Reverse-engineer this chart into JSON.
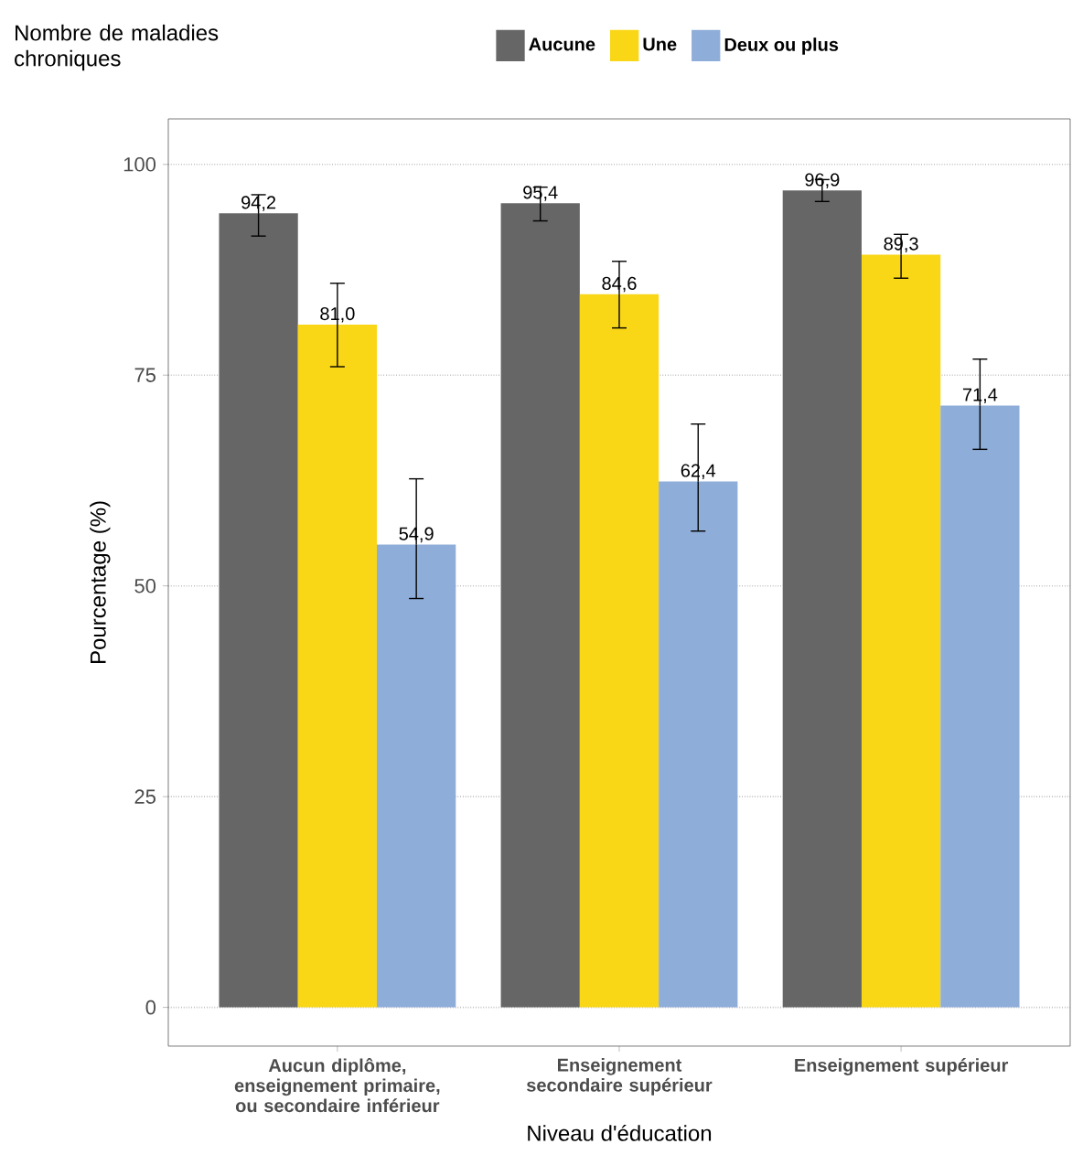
{
  "chart_data": {
    "type": "bar",
    "xlabel": "Niveau d'éducation",
    "ylabel": "Pourcentage (%)",
    "legend_title": "Nombre de maladies chroniques",
    "categories": [
      "Aucun diplôme, enseignement primaire, ou secondaire inférieur",
      "Enseignement secondaire supérieur",
      "Enseignement supérieur"
    ],
    "series": [
      {
        "name": "Aucune",
        "color": "#666666",
        "values": [
          94.2,
          95.4,
          96.9
        ],
        "value_labels": [
          "94,2",
          "95,4",
          "96,9"
        ],
        "errors": [
          [
            91.5,
            96.4
          ],
          [
            93.3,
            97.3
          ],
          [
            95.6,
            98.2
          ]
        ]
      },
      {
        "name": "Une",
        "color": "#f9d616",
        "values": [
          81.0,
          84.6,
          89.3
        ],
        "value_labels": [
          "81,0",
          "84,6",
          "89,3"
        ],
        "errors": [
          [
            76.0,
            85.9
          ],
          [
            80.6,
            88.5
          ],
          [
            86.5,
            91.7
          ]
        ]
      },
      {
        "name": "Deux ou plus",
        "color": "#8fadd9",
        "values": [
          54.9,
          62.4,
          71.4
        ],
        "value_labels": [
          "54,9",
          "62,4",
          "71,4"
        ],
        "errors": [
          [
            48.5,
            62.7
          ],
          [
            56.5,
            69.2
          ],
          [
            66.2,
            76.9
          ]
        ]
      }
    ],
    "ylim": [
      -4.6,
      105.4
    ],
    "yticks": [
      0,
      25,
      50,
      75,
      100
    ],
    "grid": "y",
    "legend": "top"
  }
}
